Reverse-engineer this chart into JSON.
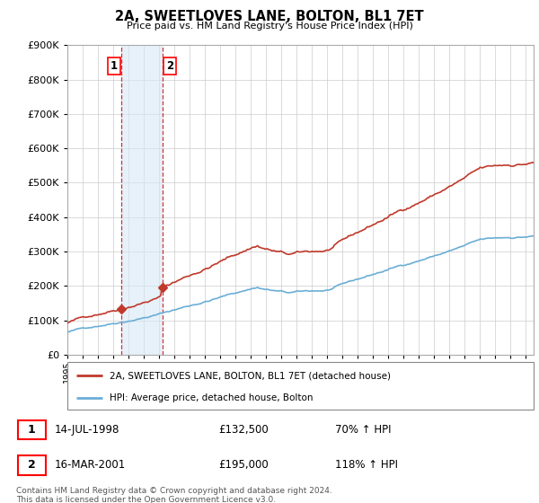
{
  "title": "2A, SWEETLOVES LANE, BOLTON, BL1 7ET",
  "subtitle": "Price paid vs. HM Land Registry's House Price Index (HPI)",
  "hpi_color": "#6baed6",
  "price_color": "#c0392b",
  "shaded_color": "#d6e8f5",
  "ylim": [
    0,
    900000
  ],
  "yticks": [
    0,
    100000,
    200000,
    300000,
    400000,
    500000,
    600000,
    700000,
    800000,
    900000
  ],
  "sale1_year": 1998.54,
  "sale1_price": 132500,
  "sale2_year": 2001.21,
  "sale2_price": 195000,
  "legend_line1": "2A, SWEETLOVES LANE, BOLTON, BL1 7ET (detached house)",
  "legend_line2": "HPI: Average price, detached house, Bolton",
  "table_row1": [
    "1",
    "14-JUL-1998",
    "£132,500",
    "70% ↑ HPI"
  ],
  "table_row2": [
    "2",
    "16-MAR-2001",
    "£195,000",
    "118% ↑ HPI"
  ],
  "footnote": "Contains HM Land Registry data © Crown copyright and database right 2024.\nThis data is licensed under the Open Government Licence v3.0.",
  "xmin": 1995.0,
  "xmax": 2025.5,
  "background_color": "#ffffff"
}
